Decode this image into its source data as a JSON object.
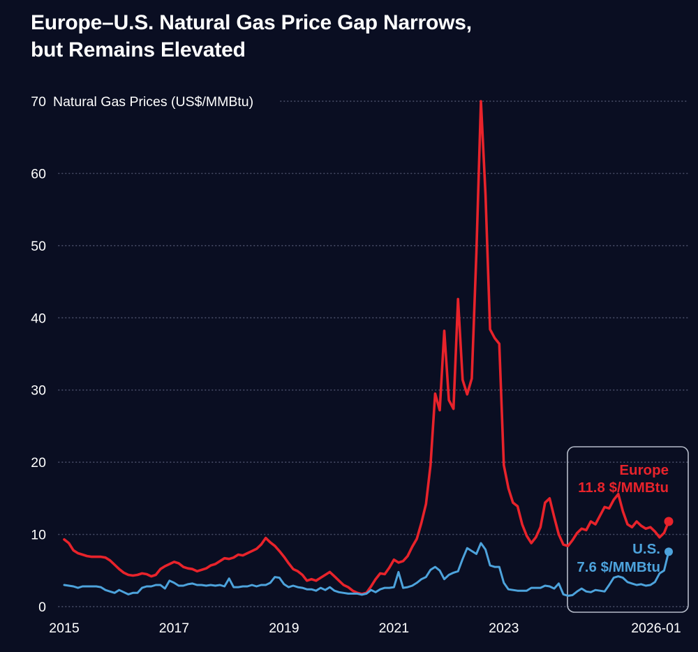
{
  "colors": {
    "background": "#0a0e22",
    "europe": "#e8232b",
    "us": "#4da3dc",
    "text": "#ffffff",
    "gridline": "#474c66",
    "recent_box_border": "#b6bcca"
  },
  "header": {
    "title_line1": "Europe–U.S. Natural Gas Price Gap Narrows,",
    "title_line2": "but Remains Elevated"
  },
  "annotations": {
    "europe": {
      "name": "Europe",
      "value": "11.8 $/MMBtu"
    },
    "us": {
      "name": "U.S.",
      "value": "7.6 $/MMBtu"
    }
  },
  "chart_data": {
    "type": "line",
    "title": "Europe–U.S. Natural Gas Price Gap Narrows, but Remains Elevated",
    "axis_title": "Natural Gas Prices (US$/MMBtu)",
    "frequency": "monthly",
    "x_start": "2015-01",
    "x_end": "2026-01",
    "ylim": [
      0,
      70
    ],
    "y_ticks": [
      0,
      10,
      20,
      30,
      40,
      50,
      60,
      70
    ],
    "grid": "dotted horizontal gridlines at each y tick",
    "legend_position": "annotated line ends, lower right, inside outlined recent-period box",
    "x_ticks": [
      {
        "label": "2015",
        "month_index": 0
      },
      {
        "label": "2017",
        "month_index": 24
      },
      {
        "label": "2019",
        "month_index": 48
      },
      {
        "label": "2021",
        "month_index": 72
      },
      {
        "label": "2023",
        "month_index": 96
      },
      {
        "label": "2026-01",
        "month_index": 132
      }
    ],
    "series": [
      {
        "id": "europe",
        "name": "Europe",
        "color": "#e8232b",
        "end_value": 11.8,
        "values": [
          9.3,
          8.8,
          7.8,
          7.4,
          7.2,
          7.0,
          6.9,
          6.9,
          6.9,
          6.8,
          6.4,
          5.8,
          5.2,
          4.7,
          4.4,
          4.3,
          4.4,
          4.6,
          4.5,
          4.2,
          4.4,
          5.2,
          5.6,
          5.9,
          6.2,
          6.0,
          5.5,
          5.3,
          5.2,
          4.9,
          5.1,
          5.3,
          5.7,
          5.9,
          6.3,
          6.7,
          6.6,
          6.8,
          7.2,
          7.1,
          7.4,
          7.7,
          8.0,
          8.6,
          9.5,
          8.9,
          8.4,
          7.7,
          6.9,
          6.0,
          5.2,
          4.9,
          4.4,
          3.6,
          3.8,
          3.6,
          4.0,
          4.4,
          4.8,
          4.2,
          3.6,
          3.0,
          2.7,
          2.2,
          1.9,
          1.75,
          1.9,
          2.8,
          3.8,
          4.6,
          4.5,
          5.4,
          6.5,
          6.1,
          6.3,
          7.0,
          8.3,
          9.4,
          11.6,
          14.2,
          19.6,
          29.5,
          27.2,
          38.2,
          28.6,
          27.4,
          42.6,
          31.4,
          29.4,
          31.6,
          49.0,
          70.0,
          57.0,
          38.4,
          37.2,
          36.4,
          19.6,
          16.4,
          14.4,
          13.9,
          11.4,
          9.8,
          8.8,
          9.6,
          11.0,
          14.4,
          15.0,
          12.4,
          10.0,
          8.6,
          8.4,
          9.2,
          10.2,
          10.8,
          10.6,
          11.8,
          11.4,
          12.6,
          13.8,
          13.6,
          14.8,
          15.6,
          13.2,
          11.4,
          11.0,
          11.8,
          11.2,
          10.8,
          11.0,
          10.4,
          9.6,
          10.2,
          11.8
        ]
      },
      {
        "id": "us",
        "name": "U.S.",
        "color": "#4da3dc",
        "end_value": 7.6,
        "values": [
          3.0,
          2.9,
          2.8,
          2.6,
          2.8,
          2.8,
          2.8,
          2.8,
          2.7,
          2.3,
          2.1,
          1.9,
          2.3,
          2.0,
          1.7,
          1.9,
          1.9,
          2.6,
          2.8,
          2.8,
          3.0,
          3.0,
          2.5,
          3.6,
          3.3,
          2.9,
          2.9,
          3.1,
          3.2,
          3.0,
          3.0,
          2.9,
          3.0,
          2.9,
          3.0,
          2.8,
          3.9,
          2.7,
          2.7,
          2.8,
          2.8,
          3.0,
          2.8,
          3.0,
          3.0,
          3.3,
          4.1,
          4.0,
          3.1,
          2.7,
          2.9,
          2.7,
          2.6,
          2.4,
          2.4,
          2.2,
          2.6,
          2.3,
          2.7,
          2.2,
          2.0,
          1.9,
          1.8,
          1.8,
          1.8,
          1.65,
          1.8,
          2.3,
          2.0,
          2.4,
          2.6,
          2.6,
          2.7,
          4.8,
          2.6,
          2.7,
          2.9,
          3.3,
          3.8,
          4.1,
          5.1,
          5.5,
          5.0,
          3.8,
          4.4,
          4.7,
          4.9,
          6.6,
          8.1,
          7.7,
          7.3,
          8.8,
          7.9,
          5.7,
          5.5,
          5.5,
          3.3,
          2.4,
          2.3,
          2.2,
          2.2,
          2.2,
          2.6,
          2.6,
          2.6,
          2.9,
          2.8,
          2.5,
          3.2,
          1.7,
          1.5,
          1.6,
          2.1,
          2.5,
          2.1,
          2.0,
          2.3,
          2.2,
          2.1,
          3.0,
          4.0,
          4.2,
          4.0,
          3.4,
          3.2,
          3.0,
          3.1,
          2.9,
          3.0,
          3.4,
          4.6,
          5.0,
          7.6
        ]
      }
    ]
  }
}
